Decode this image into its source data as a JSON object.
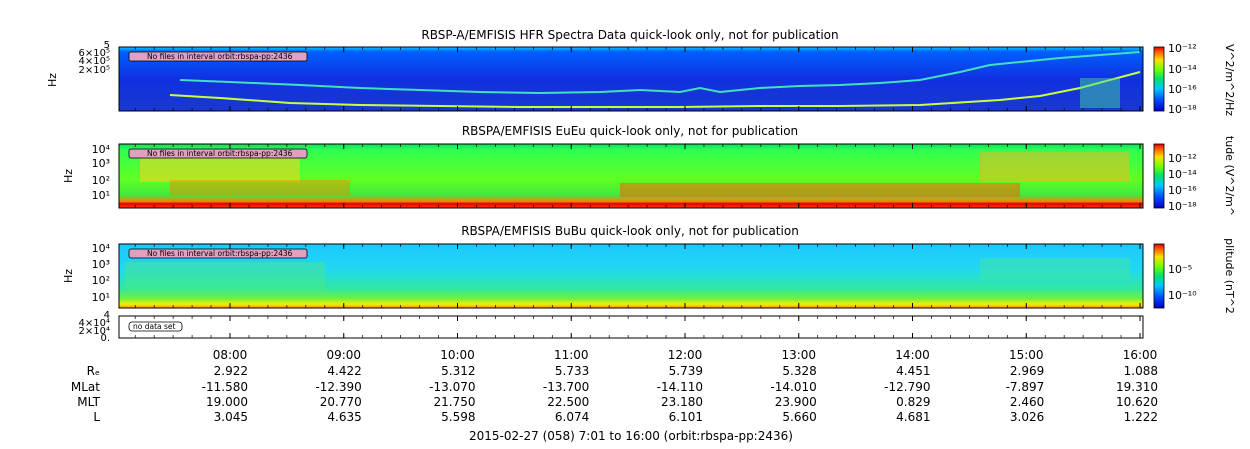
{
  "chart_data": {
    "type": "heatmap",
    "x_time_ticks": [
      "08:00",
      "09:00",
      "10:00",
      "11:00",
      "12:00",
      "13:00",
      "14:00",
      "15:00",
      "16:00"
    ],
    "panels": [
      {
        "id": "hfr",
        "title": "RBSP-A/EMFISIS  HFR Spectra Data quick-look only, not for publication",
        "ylabel": "Hz",
        "y_ticks": [
          "6×10⁵",
          "4×10⁵",
          "2×10⁵"
        ],
        "y_top_label": "5",
        "note": "No files in interval orbit:rbspa-pp:2436",
        "colorbar_label": "V^2/m^2/Hz",
        "colorbar_ticks": [
          "10⁻¹²",
          "10⁻¹⁴",
          "10⁻¹⁶",
          "10⁻¹⁸"
        ]
      },
      {
        "id": "eueu",
        "title": "RBSPA/EMFISIS  EuEu quick-look only, not for publication",
        "ylabel": "Hz",
        "y_ticks": [
          "10⁴",
          "10³",
          "10²",
          "10¹"
        ],
        "note": "No files in interval orbit:rbspa-pp:2436",
        "colorbar_label": "tude (V^2/m^",
        "colorbar_ticks": [
          "10⁻¹²",
          "10⁻¹⁴",
          "10⁻¹⁶",
          "10⁻¹⁸"
        ]
      },
      {
        "id": "bubu",
        "title": "RBSPA/EMFISIS  BuBu quick-look only, not for publication",
        "ylabel": "Hz",
        "y_ticks": [
          "10⁴",
          "10³",
          "10²",
          "10¹"
        ],
        "note": "No files in interval orbit:rbspa-pp:2436",
        "colorbar_label": "plitude (nT^2",
        "colorbar_ticks": [
          "10⁻⁵",
          "10⁻¹⁰"
        ]
      }
    ],
    "empty_panel": {
      "y_ticks": [
        "4×10⁴",
        "2×10⁴",
        "0."
      ],
      "y_top_label": "4",
      "note": "no data set"
    },
    "ephemeris": [
      {
        "label": "Rₑ",
        "values": [
          "2.922",
          "4.422",
          "5.312",
          "5.733",
          "5.739",
          "5.328",
          "4.451",
          "2.969",
          "1.088"
        ]
      },
      {
        "label": "MLat",
        "values": [
          "-11.580",
          "-12.390",
          "-13.070",
          "-13.700",
          "-14.110",
          "-14.010",
          "-12.790",
          "-7.897",
          "19.310"
        ]
      },
      {
        "label": "MLT",
        "values": [
          "19.000",
          "20.770",
          "21.750",
          "22.500",
          "23.180",
          "23.900",
          "0.829",
          "2.460",
          "10.620"
        ]
      },
      {
        "label": "L",
        "values": [
          "3.045",
          "4.635",
          "5.598",
          "6.074",
          "6.101",
          "5.660",
          "4.681",
          "3.026",
          "1.222"
        ]
      }
    ],
    "footer": "2015-02-27 (058) 7:01 to 16:00 (orbit:rbspa-pp:2436)"
  }
}
